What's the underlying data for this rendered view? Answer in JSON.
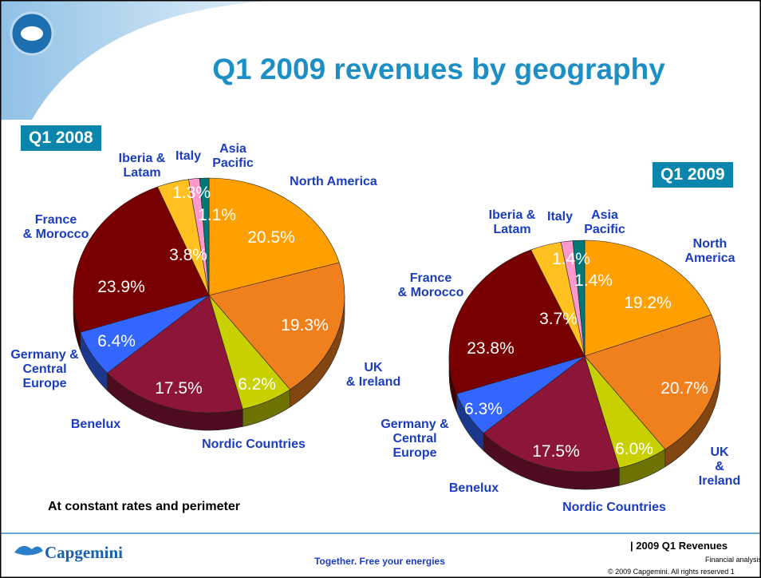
{
  "title": "Q1 2009 revenues by geography",
  "note": "At constant rates and perimeter",
  "logo": "Capgemini",
  "footer": {
    "tagline": "Together. Free your energies",
    "section": "| 2009 Q1 Revenues",
    "subsection": "Financial analysis",
    "copyright": "© 2009 Capgemini. All rights reserved 1"
  },
  "chart_data": [
    {
      "type": "pie",
      "title": "Q1 2008",
      "categories": [
        "North America",
        "UK\n& Ireland",
        "Nordic Countries",
        "Benelux",
        "Germany &\nCentral\nEurope",
        "France\n& Morocco",
        "Iberia &\nLatam",
        "Italy",
        "Asia\nPacific"
      ],
      "values": [
        20.5,
        19.3,
        6.2,
        17.5,
        6.4,
        23.9,
        3.8,
        1.3,
        1.1
      ],
      "value_labels": [
        "20.5%",
        "19.3%",
        "6.2%",
        "17.5%",
        "6.4%",
        "23.9%",
        "3.8%",
        "1.3%",
        "1.1%"
      ],
      "colors": [
        "#ffa000",
        "#f0801e",
        "#c8d000",
        "#8c1538",
        "#3366ff",
        "#780000",
        "#ffc020",
        "#ff99cc",
        "#007878"
      ]
    },
    {
      "type": "pie",
      "title": "Q1 2009",
      "categories": [
        "North America",
        "UK\n& Ireland",
        "Nordic Countries",
        "Benelux",
        "Germany &\nCentral\nEurope",
        "France\n& Morocco",
        "Iberia &\nLatam",
        "Italy",
        "Asia\nPacific"
      ],
      "values": [
        19.2,
        20.7,
        6,
        17.5,
        6.3,
        23.8,
        3.7,
        1.4,
        1.4
      ],
      "value_labels": [
        "19.2%",
        "20.7%",
        "6.0%",
        "17.5%",
        "6.3%",
        "23.8%",
        "3.7%",
        "1.4%",
        "1.4%"
      ],
      "colors": [
        "#ffa000",
        "#f0801e",
        "#c8d000",
        "#8c1538",
        "#3366ff",
        "#780000",
        "#ffc020",
        "#ff99cc",
        "#007878"
      ]
    }
  ]
}
